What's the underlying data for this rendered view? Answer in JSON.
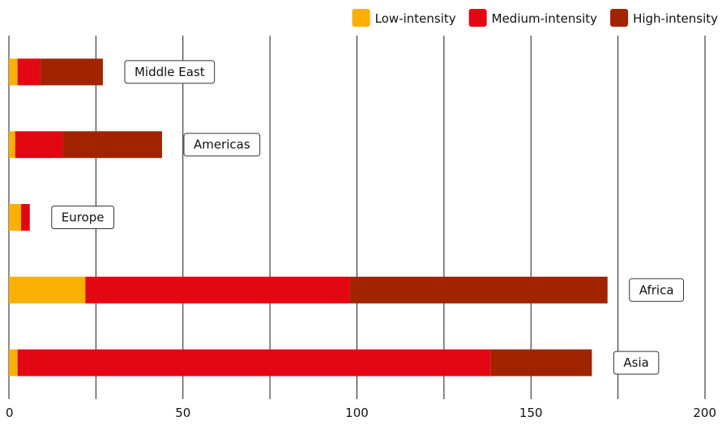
{
  "chart_data": {
    "type": "bar",
    "orientation": "horizontal",
    "stacked": true,
    "categories": [
      "Middle East",
      "Americas",
      "Europe",
      "Africa",
      "Asia"
    ],
    "series": [
      {
        "name": "Low-intensity",
        "color": "#f9b000",
        "values": [
          2.5,
          1.8,
          3.5,
          22,
          2.5
        ]
      },
      {
        "name": "Medium-intensity",
        "color": "#e30613",
        "values": [
          6.5,
          13.7,
          2.5,
          76,
          136
        ]
      },
      {
        "name": "High-intensity",
        "color": "#a12400",
        "values": [
          18,
          28.5,
          0,
          74,
          29
        ]
      }
    ],
    "xlim": [
      0,
      200
    ],
    "xticks": [
      "0",
      "50",
      "100",
      "150",
      "200"
    ],
    "legend_position": "top-right",
    "grid": "vertical"
  }
}
